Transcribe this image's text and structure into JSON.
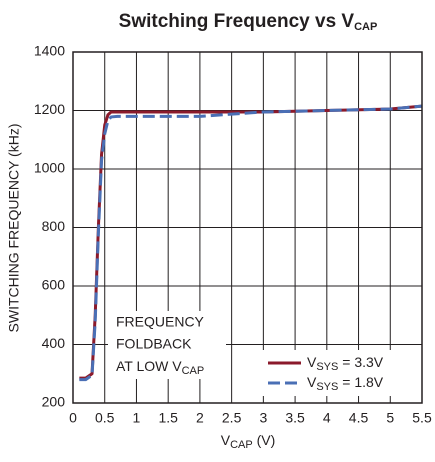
{
  "chart_data": {
    "type": "line",
    "title": [
      "Switching Frequency vs V",
      "CAP"
    ],
    "x_label": [
      "V",
      "CAP",
      " (V)"
    ],
    "y_label": "SWITCHING FREQUENCY (kHz)",
    "annotation": [
      "FREQUENCY",
      "FOLDBACK",
      "AT LOW V",
      "CAP"
    ],
    "x": [
      0.1,
      0.2,
      0.3,
      0.35,
      0.4,
      0.45,
      0.5,
      0.55,
      0.6,
      0.7,
      1,
      2,
      3,
      4,
      5,
      5.5
    ],
    "series": [
      {
        "name": [
          "V",
          "SYS",
          " = 3.3V"
        ],
        "color": "#8b1a2b",
        "dash": false,
        "values": [
          285,
          285,
          300,
          500,
          800,
          1050,
          1150,
          1185,
          1195,
          1195,
          1195,
          1195,
          1195,
          1200,
          1205,
          1215
        ]
      },
      {
        "name": [
          "V",
          "SYS",
          " = 1.8V"
        ],
        "color": "#4a6fb5",
        "dash": true,
        "values": [
          280,
          280,
          295,
          480,
          780,
          1030,
          1120,
          1165,
          1178,
          1180,
          1180,
          1180,
          1195,
          1200,
          1205,
          1215
        ]
      }
    ],
    "xlim": [
      0,
      5.5
    ],
    "ylim": [
      200,
      1400
    ],
    "xticks": [
      0,
      0.5,
      1,
      1.5,
      2,
      2.5,
      3,
      3.5,
      4,
      4.5,
      5,
      5.5
    ],
    "yticks": [
      200,
      400,
      600,
      800,
      1000,
      1200,
      1400
    ],
    "grid": true,
    "legend": "lower right"
  }
}
